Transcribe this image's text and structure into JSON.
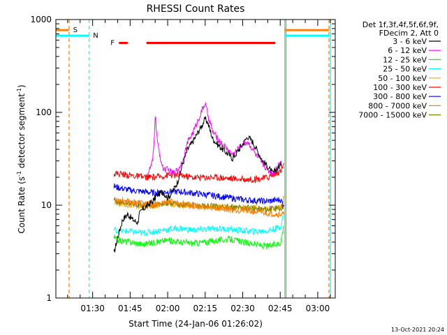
{
  "chart_data": {
    "type": "line",
    "title": "RHESSI Count Rates",
    "xlabel": "Start Time (24-Jan-06 01:26:02)",
    "ylabel_main": "Count Rate (s",
    "ylabel_sup1": "-1",
    "ylabel_mid": " detector segment",
    "ylabel_sup2": "-1",
    "ylabel_end": ")",
    "yscale": "log",
    "ylim": [
      1,
      1000
    ],
    "xlim_minutes": [
      75.3,
      187.0
    ],
    "x_ticks": [
      {
        "label": "01:30",
        "minutes": 90
      },
      {
        "label": "01:45",
        "minutes": 105
      },
      {
        "label": "02:00",
        "minutes": 120
      },
      {
        "label": "02:15",
        "minutes": 135
      },
      {
        "label": "02:30",
        "minutes": 150
      },
      {
        "label": "02:45",
        "minutes": 165
      },
      {
        "label": "03:00",
        "minutes": 180
      }
    ],
    "y_ticks": [
      {
        "label": "1",
        "value": 1
      },
      {
        "label": "10",
        "value": 10
      },
      {
        "label": "100",
        "value": 100
      },
      {
        "label": "1000",
        "value": 1000
      }
    ],
    "legend_header": [
      "Det 1f,3f,4f,5f,6f,9f,",
      "FDecim 2, Att 0"
    ],
    "legend_placement": "right",
    "series": [
      {
        "name": "3 - 6 keV",
        "color": "#000000",
        "x": [
          98.5,
          100,
          102,
          104,
          106,
          108,
          108.7,
          110,
          112,
          114,
          116,
          118,
          120,
          122,
          124,
          126,
          128,
          130,
          132,
          134,
          135,
          136,
          138,
          140,
          142,
          144,
          146,
          148,
          150,
          152,
          154,
          156,
          158,
          160,
          162,
          164,
          165.5
        ],
        "y": [
          3,
          4.5,
          7,
          8,
          7,
          6.5,
          8,
          9,
          10,
          11,
          13,
          14,
          12,
          14,
          18,
          28,
          40,
          48,
          60,
          75,
          85,
          78,
          52,
          45,
          40,
          36,
          32,
          38,
          45,
          55,
          48,
          38,
          30,
          26,
          22,
          25,
          28
        ]
      },
      {
        "name": "6 - 12 keV",
        "color": "#ff00ff",
        "x": [
          112,
          113,
          114,
          114.5,
          115,
          116,
          118,
          120,
          122,
          124,
          126,
          128,
          130,
          132,
          134,
          135,
          136,
          138,
          140,
          142,
          144,
          146,
          148,
          150,
          152,
          154,
          156,
          158,
          160,
          162,
          164,
          165.5
        ],
        "y": [
          22,
          25,
          30,
          45,
          95,
          45,
          25,
          24,
          22,
          24,
          30,
          48,
          60,
          80,
          110,
          125,
          95,
          62,
          52,
          45,
          40,
          35,
          40,
          46,
          48,
          40,
          32,
          28,
          24,
          22,
          27,
          29
        ]
      },
      {
        "name": "12 - 25 keV",
        "color": "#00ff00",
        "x": [
          98.5,
          100,
          105,
          110,
          115,
          120,
          125,
          130,
          135,
          140,
          145,
          150,
          155,
          160,
          165,
          166.5
        ],
        "y": [
          4.5,
          4.2,
          4.0,
          3.8,
          4.0,
          4.2,
          4.0,
          3.9,
          4.0,
          4.2,
          4.3,
          4.0,
          3.8,
          3.6,
          3.9,
          6
        ]
      },
      {
        "name": "25 - 50 keV",
        "color": "#00ffff",
        "x": [
          98.5,
          100,
          105,
          110,
          115,
          120,
          125,
          130,
          135,
          140,
          145,
          150,
          155,
          160,
          165,
          166.5
        ],
        "y": [
          5.5,
          5.3,
          5.2,
          5.0,
          5.2,
          5.5,
          5.6,
          5.4,
          5.5,
          5.6,
          5.5,
          5.3,
          5.2,
          5.3,
          5.8,
          8
        ]
      },
      {
        "name": "50 - 100 keV",
        "color": "#ffa500",
        "x": [
          98.5,
          100,
          105,
          110,
          115,
          120,
          125,
          130,
          135,
          140,
          145,
          150,
          155,
          160,
          165,
          166.5
        ],
        "y": [
          11,
          10.5,
          10,
          9.5,
          10,
          10.5,
          10,
          9.8,
          9.6,
          9.5,
          9.5,
          9.4,
          9.2,
          9.0,
          9.5,
          12
        ]
      },
      {
        "name": "100 - 300 keV",
        "color": "#ff0000",
        "x": [
          98.5,
          100,
          105,
          110,
          115,
          120,
          125,
          130,
          135,
          140,
          145,
          150,
          155,
          160,
          165,
          166.5
        ],
        "y": [
          22,
          22,
          21,
          20,
          20,
          21,
          21,
          20,
          20,
          20,
          19.5,
          19,
          19,
          20,
          23,
          28
        ]
      },
      {
        "name": "300 - 800 keV",
        "color": "#0000ff",
        "x": [
          98.5,
          100,
          105,
          110,
          115,
          120,
          125,
          130,
          135,
          140,
          145,
          150,
          155,
          160,
          165,
          166.5
        ],
        "y": [
          16,
          15.5,
          14.5,
          14,
          13.5,
          14,
          14,
          13.5,
          13,
          12.5,
          12,
          11.5,
          11.2,
          11,
          11.5,
          10
        ]
      },
      {
        "name": "800 - 7000 keV",
        "color": "#ff8000",
        "x": [
          98.5,
          100,
          105,
          110,
          115,
          120,
          125,
          130,
          135,
          140,
          145,
          150,
          155,
          160,
          165,
          166.5
        ],
        "y": [
          12,
          11.5,
          11,
          10.5,
          10,
          11,
          10.5,
          10,
          9.5,
          9.2,
          9,
          8.8,
          8.5,
          8.2,
          8,
          8
        ]
      },
      {
        "name": "7000 - 15000 keV",
        "color": "#808000",
        "x": [
          98.5,
          100,
          105,
          110,
          115,
          120,
          125,
          130,
          135,
          140,
          145,
          150,
          155,
          160,
          165,
          166.5
        ],
        "y": [
          11,
          10.8,
          10.5,
          10,
          10.2,
          10.4,
          10.2,
          10,
          9.8,
          9.6,
          9.5,
          9.4,
          9.2,
          9.0,
          9.3,
          10
        ]
      }
    ],
    "attenuator_state": {
      "label": "S",
      "color": "#ff8000",
      "level": 770,
      "segments": [
        [
          75.3,
          80.5
        ],
        [
          166.8,
          184.5
        ]
      ]
    },
    "night_state": {
      "label": "N",
      "color": "#00ffff",
      "level": 670,
      "segments": [
        [
          75.3,
          88.5
        ],
        [
          166.8,
          184.5
        ]
      ]
    },
    "flare_flag": {
      "label": "F",
      "color": "#ff0000",
      "level": 560,
      "segments": [
        [
          100.5,
          104
        ],
        [
          111.5,
          163
        ]
      ]
    },
    "vertical_markers": [
      {
        "minutes": 80.6,
        "color": "#ff8000",
        "style": "dashed"
      },
      {
        "minutes": 88.6,
        "color": "#00ffff",
        "style": "dashed"
      },
      {
        "minutes": 166.8,
        "color": "#00ffff",
        "style": "solid"
      },
      {
        "minutes": 167.3,
        "color": "#ff8000",
        "style": "solid"
      },
      {
        "minutes": 184.5,
        "color": "#ff8000",
        "style": "dashed"
      },
      {
        "minutes": 185.1,
        "color": "#00ffff",
        "style": "solid"
      }
    ],
    "timestamp": "13-Oct-2021 20:24"
  }
}
